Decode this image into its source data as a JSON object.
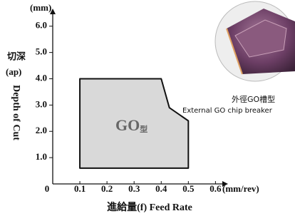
{
  "chart_data": {
    "type": "region",
    "y_unit": "(mm)",
    "y_label_zh": "切深",
    "y_label_sym": "(ap)",
    "y_label_en": "Depth of Cut",
    "x_unit": "(mm/rev)",
    "x_label": "進給量(f) Feed Rate",
    "region_label": "GO",
    "region_label_suffix": "型",
    "caption_zh": "外徑GO槽型",
    "caption_en": "External GO chip breaker",
    "x": [
      0.1,
      0.4,
      0.43,
      0.5,
      0.5,
      0.1
    ],
    "y": [
      4.0,
      4.0,
      2.9,
      2.4,
      0.6,
      0.6
    ],
    "color": "#d9d9d9",
    "xlim": [
      0,
      0.62
    ],
    "ylim": [
      0,
      6.4
    ],
    "xticks": [
      0,
      0.1,
      0.2,
      0.3,
      0.4,
      0.5,
      0.6
    ],
    "yticks": [
      {
        "value": 1,
        "label": "1.0"
      },
      {
        "value": 2,
        "label": "2.0"
      },
      {
        "value": 3,
        "label": "3.0"
      },
      {
        "value": 4,
        "label": "4.0"
      },
      {
        "value": 5,
        "label": "5.0"
      },
      {
        "value": 6,
        "label": "6.0"
      }
    ]
  }
}
